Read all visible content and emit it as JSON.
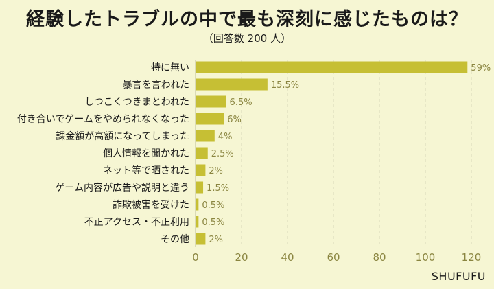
{
  "title": "経験したトラブルの中で最も深刻に感じたものは？",
  "subtitle": "（回答数 200 人）",
  "credit": "SHUFUFU",
  "colors": {
    "bar": "#c6bf34",
    "background": "#f6f6d3",
    "grid": "#d8d8b8",
    "axis_text": "#8a8540"
  },
  "chart_data": {
    "type": "bar",
    "orientation": "horizontal",
    "categories": [
      "特に無い",
      "暴言を言われた",
      "しつこくつきまとわれた",
      "付き合いでゲームをやめられなくなった",
      "課金額が高額になってしまった",
      "個人情報を聞かれた",
      "ネット等で晒された",
      "ゲーム内容が広告や説明と違う",
      "詐欺被害を受けた",
      "不正アクセス・不正利用",
      "その他"
    ],
    "values": [
      118,
      31,
      13,
      12,
      8,
      5,
      4,
      3,
      1,
      1,
      4
    ],
    "value_labels": [
      "59%",
      "15.5%",
      "6.5%",
      "6%",
      "4%",
      "2.5%",
      "2%",
      "1.5%",
      "0.5%",
      "0.5%",
      "2%"
    ],
    "xlim": [
      0,
      120
    ],
    "xticks": [
      0,
      20,
      40,
      60,
      80,
      100,
      120
    ],
    "grid": true,
    "legend": "none"
  }
}
